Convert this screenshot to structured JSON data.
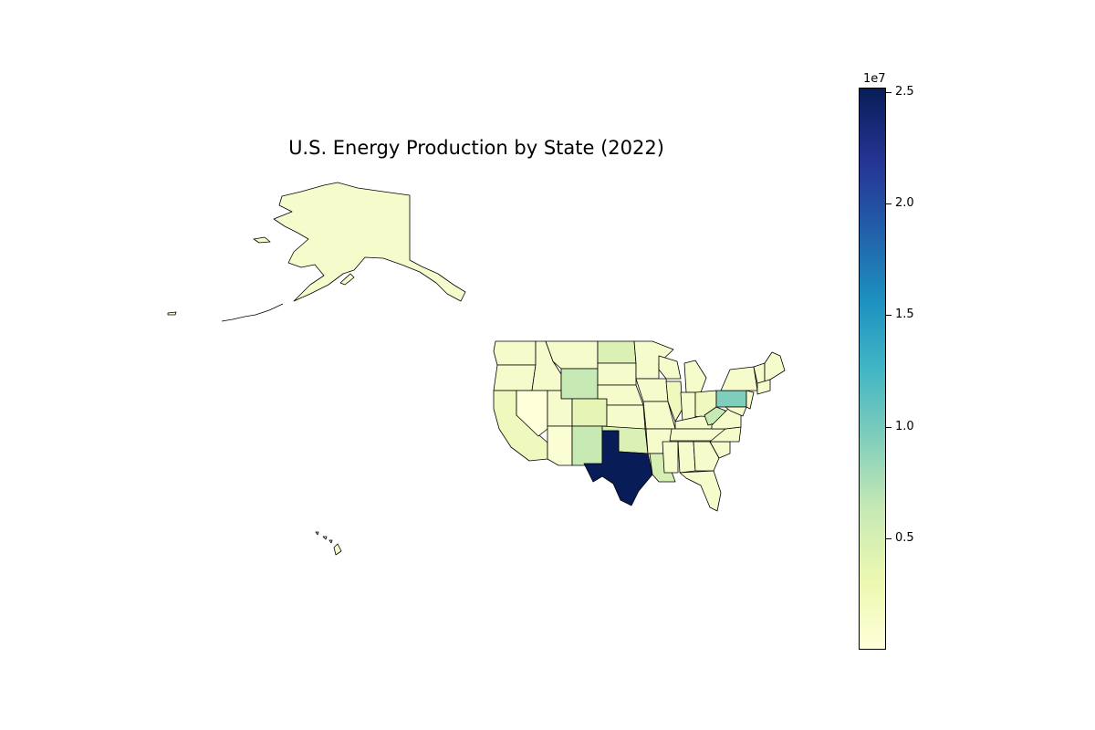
{
  "title": "U.S. Energy Production by State (2022)",
  "colorbar": {
    "exponent_label": "1e7",
    "ticks": [
      {
        "value": 2.5,
        "label": "2.5"
      },
      {
        "value": 2.0,
        "label": "2.0"
      },
      {
        "value": 1.5,
        "label": "1.5"
      },
      {
        "value": 1.0,
        "label": "1.0"
      },
      {
        "value": 0.5,
        "label": "0.5"
      }
    ],
    "range": [
      0.0,
      2.52
    ],
    "colormap": "YlGnBu"
  },
  "colors": {
    "very_low": "#ffffd9",
    "low": "#f3fac6",
    "low_mid": "#e3f4b3",
    "mid_low": "#c7e9b4",
    "mid": "#7fcdbb",
    "max": "#081d58"
  },
  "chart_data": {
    "type": "choropleth",
    "title": "U.S. Energy Production by State (2022)",
    "value_unit_multiplier": "1e7",
    "states": [
      {
        "state": "Texas",
        "value": 2.52
      },
      {
        "state": "Pennsylvania",
        "value": 0.95
      },
      {
        "state": "New Mexico",
        "value": 0.65
      },
      {
        "state": "Wyoming",
        "value": 0.6
      },
      {
        "state": "West Virginia",
        "value": 0.45
      },
      {
        "state": "North Dakota",
        "value": 0.4
      },
      {
        "state": "Oklahoma",
        "value": 0.4
      },
      {
        "state": "Louisiana",
        "value": 0.38
      },
      {
        "state": "Colorado",
        "value": 0.3
      },
      {
        "state": "Ohio",
        "value": 0.15
      },
      {
        "state": "California",
        "value": 0.15
      },
      {
        "state": "Alaska",
        "value": 0.12
      },
      {
        "state": "Illinois",
        "value": 0.12
      },
      {
        "state": "Other states",
        "value": 0.05
      }
    ]
  }
}
